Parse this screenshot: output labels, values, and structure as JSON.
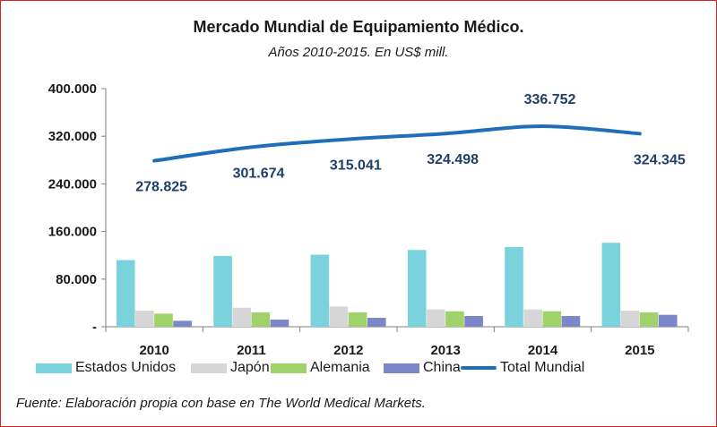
{
  "chart_data": {
    "type": "bar",
    "title": "Mercado Mundial de Equipamiento Médico.",
    "subtitle": "Años 2010-2015. En US$ mill.",
    "categories": [
      "2010",
      "2011",
      "2012",
      "2013",
      "2014",
      "2015"
    ],
    "ylim": [
      0,
      400000
    ],
    "yticks": [
      {
        "value": 0,
        "label": "-"
      },
      {
        "value": 80000,
        "label": "80.000"
      },
      {
        "value": 160000,
        "label": "160.000"
      },
      {
        "value": 240000,
        "label": "240.000"
      },
      {
        "value": 320000,
        "label": "320.000"
      },
      {
        "value": 400000,
        "label": "400.000"
      }
    ],
    "series": [
      {
        "name": "Estados Unidos",
        "type": "bar",
        "color": "#7ad3dc",
        "values": [
          112000,
          119000,
          121000,
          129000,
          134000,
          141000
        ]
      },
      {
        "name": "Japón",
        "type": "bar",
        "color": "#d6d6d6",
        "values": [
          27000,
          32000,
          34000,
          29000,
          29000,
          27000
        ]
      },
      {
        "name": "Alemania",
        "type": "bar",
        "color": "#9fd26a",
        "values": [
          22000,
          24000,
          24000,
          26000,
          26000,
          24000
        ]
      },
      {
        "name": "China",
        "type": "bar",
        "color": "#7b87c9",
        "values": [
          10000,
          12000,
          15000,
          18000,
          18000,
          20000
        ]
      },
      {
        "name": "Total Mundial",
        "type": "line",
        "color": "#1f6fb8",
        "values": [
          278825,
          301674,
          315041,
          324498,
          336752,
          324345
        ],
        "labels": [
          "278.825",
          "301.674",
          "315.041",
          "324.498",
          "336.752",
          "324.345"
        ]
      }
    ],
    "legend": "bottom",
    "grid": false
  },
  "source_note": "Fuente:  Elaboración propia con base en The World Medical Markets."
}
